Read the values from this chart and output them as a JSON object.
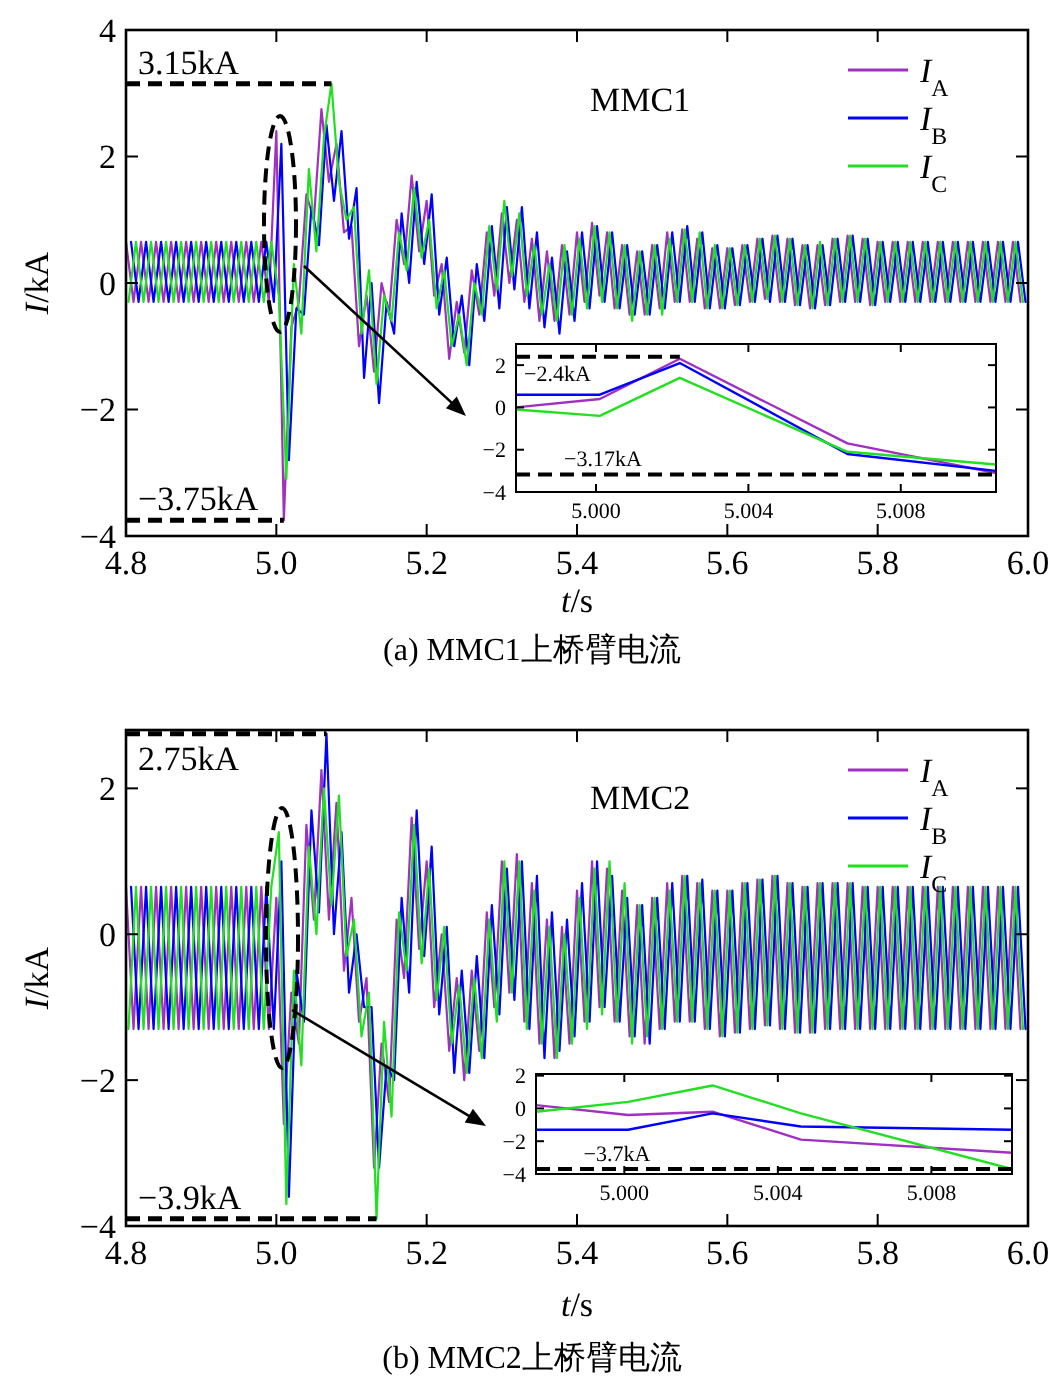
{
  "chart_data": [
    {
      "type": "line",
      "title": "(a) MMC1上桥臂电流",
      "xlabel": "*t*/s",
      "ylabel": "*I*/kA",
      "legend": "top right",
      "xlim": [
        4.8,
        6.0
      ],
      "ylim": [
        -4,
        4
      ],
      "xticks": [
        4.8,
        {
          "value": 5,
          "label": "5.0"
        },
        5.2,
        5.4,
        5.6,
        5.8,
        {
          "value": 6,
          "label": "6.0"
        }
      ],
      "yticks": [
        -4,
        -2,
        0,
        2,
        4
      ],
      "annotations": [
        "MMC1",
        {
          "text": "3.15kA",
          "x": 5.0733,
          "y": 3.15
        },
        {
          "text": "−3.75kA",
          "x": 5.01,
          "y": -3.75
        }
      ],
      "x": [
        4.8,
        4.81,
        4.82,
        4.83,
        4.84,
        4.85,
        4.86,
        4.87,
        4.88,
        4.89,
        4.9,
        4.91,
        4.92,
        4.93,
        4.94,
        4.95,
        4.96,
        4.97,
        4.98,
        4.99,
        5,
        5.01,
        5.02,
        5.03,
        5.04,
        5.05,
        5.06,
        5.07,
        5.08,
        5.09,
        5.1,
        5.11,
        5.12,
        5.13,
        5.14,
        5.15,
        5.16,
        5.17,
        5.18,
        5.19,
        5.2,
        5.21,
        5.22,
        5.23,
        5.24,
        5.25,
        5.26,
        5.27,
        5.28,
        5.29,
        5.3,
        5.31,
        5.32,
        5.33,
        5.34,
        5.35,
        5.36,
        5.37,
        5.38,
        5.39,
        5.4,
        5.41,
        5.42,
        5.43,
        5.44,
        5.45,
        5.46,
        5.47,
        5.48,
        5.49,
        5.5,
        5.51,
        5.52,
        5.53,
        5.54,
        5.55,
        5.56,
        5.57,
        5.58,
        5.59,
        5.6,
        5.61,
        5.62,
        5.63,
        5.64,
        5.65,
        5.66,
        5.67,
        5.68,
        5.69,
        5.7,
        5.71,
        5.72,
        5.73,
        5.74,
        5.75,
        5.76,
        5.77,
        5.78,
        5.79,
        5.8,
        5.81,
        5.82,
        5.83,
        5.84,
        5.85,
        5.86,
        5.87,
        5.88,
        5.89,
        5.9,
        5.91,
        5.92,
        5.93,
        5.94,
        5.95,
        5.96,
        5.97,
        5.98,
        5.99
      ],
      "series": [
        {
          "name": "*I*$_{A}$",
          "color": "#a030c0",
          "values": [
            0.65,
            -0.3,
            0.65,
            -0.3,
            0.65,
            -0.3,
            0.65,
            -0.3,
            0.65,
            -0.3,
            0.65,
            -0.3,
            0.65,
            -0.3,
            0.65,
            -0.3,
            0.65,
            -0.3,
            0.65,
            -0.3,
            2.4,
            -3.75,
            -0.7,
            -0.3,
            1.4,
            1.0,
            2.75,
            1.6,
            2.2,
            0.8,
            0.9,
            -1.0,
            -0.2,
            -1.4,
            0.0,
            -0.5,
            1.0,
            0.3,
            1.7,
            0.5,
            1.3,
            -0.2,
            0.3,
            -1.2,
            -0.3,
            -1.1,
            0.2,
            -0.5,
            0.8,
            -0.2,
            1.1,
            0.0,
            1.0,
            -0.3,
            0.7,
            -0.6,
            0.5,
            -0.6,
            0.6,
            -0.5,
            0.8,
            -0.3,
            0.95,
            -0.2,
            0.8,
            -0.4,
            0.6,
            -0.5,
            0.5,
            -0.5,
            0.6,
            -0.4,
            0.8,
            -0.3,
            0.85,
            -0.3,
            0.7,
            -0.4,
            0.55,
            -0.4,
            0.55,
            -0.35,
            0.6,
            -0.3,
            0.7,
            -0.25,
            0.75,
            -0.3,
            0.7,
            -0.35,
            0.6,
            -0.4,
            0.6,
            -0.35,
            0.7,
            -0.3,
            0.75,
            -0.3,
            0.7,
            -0.35,
            0.65,
            -0.3,
            0.65,
            -0.3,
            0.65,
            -0.3,
            0.65,
            -0.3,
            0.65,
            -0.3,
            0.65,
            -0.3,
            0.65,
            -0.3,
            0.65,
            -0.3,
            0.65,
            -0.3,
            0.65,
            -0.3
          ]
        },
        {
          "name": "*I*$_{B}$",
          "color": "#0000ff",
          "x": [
            4.8067,
            4.8167,
            4.8267,
            4.8367,
            4.8467,
            4.8567,
            4.8667,
            4.8767,
            4.8867,
            4.8967,
            4.9067,
            4.9167,
            4.9267,
            4.9367,
            4.9467,
            4.9567,
            4.9667,
            4.9767,
            4.9867,
            4.9967,
            5.0067,
            5.0167,
            5.0267,
            5.0367,
            5.0467,
            5.0567,
            5.0667,
            5.0767,
            5.0867,
            5.0967,
            5.1067,
            5.1167,
            5.1267,
            5.1367,
            5.1467,
            5.1567,
            5.1667,
            5.1767,
            5.1867,
            5.1967,
            5.2067,
            5.2167,
            5.2267,
            5.2367,
            5.2467,
            5.2567,
            5.2667,
            5.2767,
            5.2867,
            5.2967,
            5.3067,
            5.3167,
            5.3267,
            5.3367,
            5.3467,
            5.3567,
            5.3667,
            5.3767,
            5.3867,
            5.3967,
            5.4067,
            5.4167,
            5.4267,
            5.4367,
            5.4467,
            5.4567,
            5.4667,
            5.4767,
            5.4867,
            5.4967,
            5.5067,
            5.5167,
            5.5267,
            5.5367,
            5.5467,
            5.5567,
            5.5667,
            5.5767,
            5.5867,
            5.5967,
            5.6067,
            5.6167,
            5.6267,
            5.6367,
            5.6467,
            5.6567,
            5.6667,
            5.6767,
            5.6867,
            5.6967,
            5.7067,
            5.7167,
            5.7267,
            5.7367,
            5.7467,
            5.7567,
            5.7667,
            5.7767,
            5.7867,
            5.7967,
            5.8067,
            5.8167,
            5.8267,
            5.8367,
            5.8467,
            5.8567,
            5.8667,
            5.8767,
            5.8867,
            5.8967,
            5.9067,
            5.9167,
            5.9267,
            5.9367,
            5.9467,
            5.9567,
            5.9667,
            5.9767,
            5.9867,
            5.9967
          ],
          "values": [
            0.65,
            -0.3,
            0.65,
            -0.3,
            0.65,
            -0.3,
            0.65,
            -0.3,
            0.65,
            -0.3,
            0.65,
            -0.3,
            0.65,
            -0.3,
            0.65,
            -0.3,
            0.65,
            -0.3,
            0.65,
            -0.3,
            2.2,
            -2.8,
            -0.4,
            -0.5,
            1.2,
            0.6,
            2.5,
            1.3,
            2.4,
            0.7,
            1.5,
            -1.5,
            0.0,
            -1.9,
            -0.3,
            -0.8,
            1.1,
            0.0,
            1.6,
            0.3,
            1.4,
            -0.5,
            0.4,
            -1.0,
            -0.2,
            -1.3,
            0.3,
            -0.6,
            0.9,
            -0.4,
            1.2,
            -0.1,
            1.2,
            -0.4,
            0.8,
            -0.7,
            0.4,
            -0.8,
            0.5,
            -0.6,
            0.8,
            -0.4,
            0.9,
            -0.3,
            0.8,
            -0.4,
            0.6,
            -0.5,
            0.5,
            -0.5,
            0.6,
            -0.4,
            0.8,
            -0.3,
            0.9,
            -0.3,
            0.8,
            -0.4,
            0.6,
            -0.4,
            0.55,
            -0.35,
            0.6,
            -0.3,
            0.7,
            -0.3,
            0.75,
            -0.3,
            0.7,
            -0.35,
            0.6,
            -0.4,
            0.6,
            -0.35,
            0.7,
            -0.3,
            0.75,
            -0.3,
            0.7,
            -0.35,
            0.65,
            -0.3,
            0.65,
            -0.3,
            0.65,
            -0.3,
            0.65,
            -0.3,
            0.65,
            -0.3,
            0.65,
            -0.3,
            0.65,
            -0.3,
            0.65,
            -0.3,
            0.65,
            -0.3,
            0.65,
            -0.3
          ]
        },
        {
          "name": "*I*$_{C}$",
          "color": "#20e020",
          "x": [
            4.8033,
            4.8133,
            4.8233,
            4.8333,
            4.8433,
            4.8533,
            4.8633,
            4.8733,
            4.8833,
            4.8933,
            4.9033,
            4.9133,
            4.9233,
            4.9333,
            4.9433,
            4.9533,
            4.9633,
            4.9733,
            4.9833,
            4.9933,
            5.0033,
            5.0133,
            5.0233,
            5.0333,
            5.0433,
            5.0533,
            5.0633,
            5.0733,
            5.0833,
            5.0933,
            5.1033,
            5.1133,
            5.1233,
            5.1333,
            5.1433,
            5.1533,
            5.1633,
            5.1733,
            5.1833,
            5.1933,
            5.2033,
            5.2133,
            5.2233,
            5.2333,
            5.2433,
            5.2533,
            5.2633,
            5.2733,
            5.2833,
            5.2933,
            5.3033,
            5.3133,
            5.3233,
            5.3333,
            5.3433,
            5.3533,
            5.3633,
            5.3733,
            5.3833,
            5.3933,
            5.4033,
            5.4133,
            5.4233,
            5.4333,
            5.4433,
            5.4533,
            5.4633,
            5.4733,
            5.4833,
            5.4933,
            5.5033,
            5.5133,
            5.5233,
            5.5333,
            5.5433,
            5.5533,
            5.5633,
            5.5733,
            5.5833,
            5.5933,
            5.6033,
            5.6133,
            5.6233,
            5.6333,
            5.6433,
            5.6533,
            5.6633,
            5.6733,
            5.6833,
            5.6933,
            5.7033,
            5.7133,
            5.7233,
            5.7333,
            5.7433,
            5.7533,
            5.7633,
            5.7733,
            5.7833,
            5.7933,
            5.8033,
            5.8133,
            5.8233,
            5.8333,
            5.8433,
            5.8533,
            5.8633,
            5.8733,
            5.8833,
            5.8933,
            5.9033,
            5.9133,
            5.9233,
            5.9333,
            5.9433,
            5.9533,
            5.9633,
            5.9733,
            5.9833,
            5.9933
          ],
          "values": [
            -0.3,
            0.65,
            -0.3,
            0.65,
            -0.3,
            0.65,
            -0.3,
            0.65,
            -0.3,
            0.65,
            -0.3,
            0.65,
            -0.3,
            0.65,
            -0.3,
            0.65,
            -0.3,
            0.65,
            -0.3,
            0.65,
            -0.2,
            -3.1,
            0.3,
            -0.8,
            1.8,
            0.5,
            2.3,
            3.15,
            1.6,
            1.0,
            1.2,
            -0.8,
            0.2,
            -1.6,
            -0.2,
            -0.6,
            0.8,
            0.2,
            1.5,
            0.4,
            1.0,
            -0.4,
            0.2,
            -1.0,
            -0.5,
            -1.3,
            0.0,
            -0.5,
            0.9,
            -0.1,
            1.3,
            0.1,
            1.1,
            -0.2,
            0.6,
            -0.5,
            0.3,
            -0.6,
            0.6,
            -0.5,
            0.7,
            -0.4,
            0.9,
            -0.3,
            0.8,
            -0.4,
            0.6,
            -0.6,
            0.5,
            -0.5,
            0.6,
            -0.5,
            0.7,
            -0.3,
            0.85,
            -0.3,
            0.8,
            -0.4,
            0.6,
            -0.4,
            0.55,
            -0.35,
            0.6,
            -0.3,
            0.7,
            -0.25,
            0.75,
            -0.3,
            0.7,
            -0.35,
            0.6,
            -0.4,
            0.65,
            -0.35,
            0.7,
            -0.3,
            0.75,
            -0.3,
            0.7,
            -0.35,
            0.65,
            -0.3,
            0.65,
            -0.3,
            0.65,
            -0.3,
            0.65,
            -0.3,
            0.65,
            -0.3,
            0.65,
            -0.3,
            0.65,
            -0.3,
            0.65,
            -0.3,
            0.65,
            -0.3,
            0.65,
            -0.3
          ]
        }
      ]
    },
    {
      "type": "line",
      "xlim": [
        4.9979,
        5.0105
      ],
      "ylim": [
        -4,
        3
      ],
      "xticks": [
        {
          "value": 5,
          "label": "5.000"
        },
        {
          "value": 5.004,
          "label": "5.004"
        },
        {
          "value": 5.008,
          "label": "5.008"
        }
      ],
      "yticks": [
        -4,
        -2,
        0,
        2
      ],
      "annotations": [
        {
          "text": "−2.4kA",
          "x": 5.0022,
          "y": 2.4
        }
      ],
      "ref_lines": [
        {
          "axis": "y",
          "value": -3.17,
          "label": "−3.17kA"
        }
      ],
      "x": [
        4.9979,
        5.0001,
        5.0022,
        5.0066,
        5.0105
      ],
      "series": [
        {
          "color": "#a030c0",
          "values": [
            0,
            0.4,
            2.3,
            -1.7,
            -3.1
          ]
        },
        {
          "color": "#0000ff",
          "values": [
            0.6,
            0.6,
            2.1,
            -2.2,
            -3.0
          ]
        },
        {
          "color": "#20e020",
          "values": [
            -0.1,
            -0.4,
            1.4,
            -2.1,
            -2.7
          ]
        }
      ]
    },
    {
      "type": "line",
      "title": "(b) MMC2上桥臂电流",
      "xlabel": "*t*/s",
      "ylabel": "*I*/kA",
      "legend": "top right",
      "xlim": [
        4.8,
        6.0
      ],
      "ylim": [
        -4,
        2.8
      ],
      "xticks": [
        4.8,
        {
          "value": 5,
          "label": "5.0"
        },
        5.2,
        5.4,
        5.6,
        5.8,
        {
          "value": 6,
          "label": "6.0"
        }
      ],
      "yticks": [
        -4,
        -2,
        0,
        2
      ],
      "annotations": [
        "MMC2",
        {
          "text": "2.75kA",
          "x": 5.0667,
          "y": 2.75
        },
        {
          "text": "−3.9kA",
          "x": 5.1333,
          "y": -3.9
        }
      ],
      "x": [
        4.8,
        4.81,
        4.82,
        4.83,
        4.84,
        4.85,
        4.86,
        4.87,
        4.88,
        4.89,
        4.9,
        4.91,
        4.92,
        4.93,
        4.94,
        4.95,
        4.96,
        4.97,
        4.98,
        4.99,
        5,
        5.01,
        5.02,
        5.03,
        5.04,
        5.05,
        5.06,
        5.07,
        5.08,
        5.09,
        5.1,
        5.11,
        5.12,
        5.13,
        5.14,
        5.15,
        5.16,
        5.17,
        5.18,
        5.19,
        5.2,
        5.21,
        5.22,
        5.23,
        5.24,
        5.25,
        5.26,
        5.27,
        5.28,
        5.29,
        5.3,
        5.31,
        5.32,
        5.33,
        5.34,
        5.35,
        5.36,
        5.37,
        5.38,
        5.39,
        5.4,
        5.41,
        5.42,
        5.43,
        5.44,
        5.45,
        5.46,
        5.47,
        5.48,
        5.49,
        5.5,
        5.51,
        5.52,
        5.53,
        5.54,
        5.55,
        5.56,
        5.57,
        5.58,
        5.59,
        5.6,
        5.61,
        5.62,
        5.63,
        5.64,
        5.65,
        5.66,
        5.67,
        5.68,
        5.69,
        5.7,
        5.71,
        5.72,
        5.73,
        5.74,
        5.75,
        5.76,
        5.77,
        5.78,
        5.79,
        5.8,
        5.81,
        5.82,
        5.83,
        5.84,
        5.85,
        5.86,
        5.87,
        5.88,
        5.89,
        5.9,
        5.91,
        5.92,
        5.93,
        5.94,
        5.95,
        5.96,
        5.97,
        5.98,
        5.99
      ],
      "series": [
        {
          "name": "*I*$_{A}$",
          "color": "#a030c0",
          "values": [
            0.65,
            -1.3,
            0.65,
            -1.3,
            0.65,
            -1.3,
            0.65,
            -1.3,
            0.65,
            -1.3,
            0.65,
            -1.3,
            0.65,
            -1.3,
            0.65,
            -1.3,
            0.65,
            -1.3,
            0.65,
            -1.3,
            0.5,
            -2.6,
            -0.8,
            -1.5,
            1.5,
            0.2,
            2.25,
            0.2,
            1.8,
            -0.5,
            0.5,
            -1.2,
            -0.6,
            -3.2,
            -1.5,
            -2.3,
            0.2,
            -0.6,
            1.6,
            -0.2,
            1.0,
            -1.0,
            0.0,
            -1.6,
            -0.6,
            -2.0,
            -0.5,
            -1.6,
            0.3,
            -1.0,
            1.0,
            -0.8,
            1.1,
            -1.2,
            0.7,
            -1.5,
            0.2,
            -1.7,
            0.1,
            -1.5,
            0.6,
            -1.2,
            1.0,
            -1.0,
            0.9,
            -1.2,
            0.6,
            -1.4,
            0.4,
            -1.5,
            0.5,
            -1.3,
            0.7,
            -1.2,
            0.8,
            -1.2,
            0.7,
            -1.3,
            0.6,
            -1.4,
            0.6,
            -1.35,
            0.7,
            -1.3,
            0.75,
            -1.25,
            0.8,
            -1.3,
            0.7,
            -1.35,
            0.65,
            -1.35,
            0.7,
            -1.3,
            0.7,
            -1.3,
            0.7,
            -1.3,
            0.65,
            -1.3,
            0.65,
            -1.3,
            0.65,
            -1.3,
            0.65,
            -1.3,
            0.65,
            -1.3,
            0.65,
            -1.3,
            0.65,
            -1.3,
            0.65,
            -1.3,
            0.65,
            -1.3,
            0.65,
            -1.3,
            0.65,
            -1.3
          ]
        },
        {
          "name": "*I*$_{B}$",
          "color": "#0000ff",
          "x": [
            4.8067,
            4.8167,
            4.8267,
            4.8367,
            4.8467,
            4.8567,
            4.8667,
            4.8767,
            4.8867,
            4.8967,
            4.9067,
            4.9167,
            4.9267,
            4.9367,
            4.9467,
            4.9567,
            4.9667,
            4.9767,
            4.9867,
            4.9967,
            5.0067,
            5.0167,
            5.0267,
            5.0367,
            5.0467,
            5.0567,
            5.0667,
            5.0767,
            5.0867,
            5.0967,
            5.1067,
            5.1167,
            5.1267,
            5.1367,
            5.1467,
            5.1567,
            5.1667,
            5.1767,
            5.1867,
            5.1967,
            5.2067,
            5.2167,
            5.2267,
            5.2367,
            5.2467,
            5.2567,
            5.2667,
            5.2767,
            5.2867,
            5.2967,
            5.3067,
            5.3167,
            5.3267,
            5.3367,
            5.3467,
            5.3567,
            5.3667,
            5.3767,
            5.3867,
            5.3967,
            5.4067,
            5.4167,
            5.4267,
            5.4367,
            5.4467,
            5.4567,
            5.4667,
            5.4767,
            5.4867,
            5.4967,
            5.5067,
            5.5167,
            5.5267,
            5.5367,
            5.5467,
            5.5567,
            5.5667,
            5.5767,
            5.5867,
            5.5967,
            5.6067,
            5.6167,
            5.6267,
            5.6367,
            5.6467,
            5.6567,
            5.6667,
            5.6767,
            5.6867,
            5.6967,
            5.7067,
            5.7167,
            5.7267,
            5.7367,
            5.7467,
            5.7567,
            5.7667,
            5.7767,
            5.7867,
            5.7967,
            5.8067,
            5.8167,
            5.8267,
            5.8367,
            5.8467,
            5.8567,
            5.8667,
            5.8767,
            5.8867,
            5.8967,
            5.9067,
            5.9167,
            5.9267,
            5.9367,
            5.9467,
            5.9567,
            5.9667,
            5.9767,
            5.9867,
            5.9967
          ],
          "values": [
            0.65,
            -1.3,
            0.65,
            -1.3,
            0.65,
            -1.3,
            0.65,
            -1.3,
            0.65,
            -1.3,
            0.65,
            -1.3,
            0.65,
            -1.3,
            0.65,
            -1.3,
            0.65,
            -1.3,
            0.65,
            -1.3,
            1.0,
            -3.6,
            -0.5,
            -1.2,
            1.7,
            0.3,
            2.75,
            0.0,
            1.4,
            -0.8,
            0.0,
            -1.0,
            -1.0,
            -3.2,
            -1.8,
            -2.0,
            0.5,
            -0.8,
            1.7,
            -0.3,
            1.2,
            -1.1,
            0.1,
            -1.9,
            -0.5,
            -1.9,
            -0.3,
            -1.7,
            0.4,
            -1.1,
            0.9,
            -0.9,
            1.0,
            -1.3,
            0.8,
            -1.7,
            0.3,
            -1.6,
            0.2,
            -1.4,
            0.7,
            -1.2,
            1.0,
            -1.0,
            0.8,
            -1.2,
            0.5,
            -1.4,
            0.4,
            -1.5,
            0.5,
            -1.3,
            0.7,
            -1.2,
            0.8,
            -1.2,
            0.75,
            -1.3,
            0.6,
            -1.4,
            0.6,
            -1.35,
            0.7,
            -1.3,
            0.75,
            -1.25,
            0.8,
            -1.3,
            0.7,
            -1.35,
            0.65,
            -1.35,
            0.7,
            -1.3,
            0.7,
            -1.3,
            0.7,
            -1.3,
            0.65,
            -1.3,
            0.65,
            -1.3,
            0.65,
            -1.3,
            0.65,
            -1.3,
            0.65,
            -1.3,
            0.65,
            -1.3,
            0.65,
            -1.3,
            0.65,
            -1.3,
            0.65,
            -1.3,
            0.65,
            -1.3,
            0.65,
            -1.3
          ]
        },
        {
          "name": "*I*$_{C}$",
          "color": "#20e020",
          "x": [
            4.8033,
            4.8133,
            4.8233,
            4.8333,
            4.8433,
            4.8533,
            4.8633,
            4.8733,
            4.8833,
            4.8933,
            4.9033,
            4.9133,
            4.9233,
            4.9333,
            4.9433,
            4.9533,
            4.9633,
            4.9733,
            4.9833,
            4.9933,
            5.0033,
            5.0133,
            5.0233,
            5.0333,
            5.0433,
            5.0533,
            5.0633,
            5.0733,
            5.0833,
            5.0933,
            5.1033,
            5.1133,
            5.1233,
            5.1333,
            5.1433,
            5.1533,
            5.1633,
            5.1733,
            5.1833,
            5.1933,
            5.2033,
            5.2133,
            5.2233,
            5.2333,
            5.2433,
            5.2533,
            5.2633,
            5.2733,
            5.2833,
            5.2933,
            5.3033,
            5.3133,
            5.3233,
            5.3333,
            5.3433,
            5.3533,
            5.3633,
            5.3733,
            5.3833,
            5.3933,
            5.4033,
            5.4133,
            5.4233,
            5.4333,
            5.4433,
            5.4533,
            5.4633,
            5.4733,
            5.4833,
            5.4933,
            5.5033,
            5.5133,
            5.5233,
            5.5333,
            5.5433,
            5.5533,
            5.5633,
            5.5733,
            5.5833,
            5.5933,
            5.6033,
            5.6133,
            5.6233,
            5.6333,
            5.6433,
            5.6533,
            5.6633,
            5.6733,
            5.6833,
            5.6933,
            5.7033,
            5.7133,
            5.7233,
            5.7333,
            5.7433,
            5.7533,
            5.7633,
            5.7733,
            5.7833,
            5.7933,
            5.8033,
            5.8133,
            5.8233,
            5.8333,
            5.8433,
            5.8533,
            5.8633,
            5.8733,
            5.8833,
            5.8933,
            5.9033,
            5.9133,
            5.9233,
            5.9333,
            5.9433,
            5.9533,
            5.9633,
            5.9733,
            5.9833,
            5.9933
          ],
          "values": [
            -1.3,
            0.65,
            -1.3,
            0.65,
            -1.3,
            0.65,
            -1.3,
            0.65,
            -1.3,
            0.65,
            -1.3,
            0.65,
            -1.3,
            0.65,
            -1.3,
            0.65,
            -1.3,
            0.65,
            -1.3,
            0.65,
            1.4,
            -3.7,
            -0.5,
            -1.8,
            1.2,
            0.0,
            2.0,
            0.4,
            1.9,
            -0.3,
            0.2,
            -1.4,
            -0.8,
            -3.9,
            -1.2,
            -2.5,
            0.3,
            -0.5,
            1.5,
            -0.4,
            0.9,
            -0.9,
            0.1,
            -1.5,
            -0.7,
            -1.9,
            -0.6,
            -1.7,
            0.2,
            -1.2,
            1.0,
            -0.8,
            1.0,
            -1.3,
            0.6,
            -1.5,
            0.1,
            -1.7,
            0.0,
            -1.5,
            0.5,
            -1.3,
            0.9,
            -1.1,
            1.0,
            -1.2,
            0.7,
            -1.5,
            0.4,
            -1.4,
            0.5,
            -1.3,
            0.6,
            -1.2,
            0.8,
            -1.2,
            0.7,
            -1.3,
            0.6,
            -1.4,
            0.6,
            -1.35,
            0.7,
            -1.3,
            0.75,
            -1.25,
            0.8,
            -1.3,
            0.7,
            -1.35,
            0.65,
            -1.35,
            0.7,
            -1.3,
            0.7,
            -1.3,
            0.7,
            -1.3,
            0.65,
            -1.3,
            0.65,
            -1.3,
            0.65,
            -1.3,
            0.65,
            -1.3,
            0.65,
            -1.3,
            0.65,
            -1.3,
            0.65,
            -1.3,
            0.65,
            -1.3,
            0.65,
            -1.3,
            0.65,
            -1.3,
            0.65,
            -1.3
          ]
        }
      ]
    },
    {
      "type": "line",
      "xlim": [
        4.9977,
        5.0101
      ],
      "ylim": [
        -4,
        2.1
      ],
      "xticks": [
        {
          "value": 5,
          "label": "5.000"
        },
        {
          "value": 5.004,
          "label": "5.004"
        },
        {
          "value": 5.008,
          "label": "5.008"
        }
      ],
      "yticks": [
        -4,
        -2,
        0,
        2
      ],
      "ref_lines": [
        {
          "axis": "y",
          "value": -3.7,
          "label": "−3.7kA"
        }
      ],
      "x": [
        4.9977,
        5.0001,
        5.0023,
        5.0046,
        5.0101
      ],
      "series": [
        {
          "color": "#a030c0",
          "values": [
            0.2,
            -0.4,
            -0.2,
            -1.9,
            -2.7
          ]
        },
        {
          "color": "#0000ff",
          "values": [
            -1.3,
            -1.3,
            -0.3,
            -1.1,
            -1.3
          ]
        },
        {
          "color": "#20e020",
          "values": [
            -0.2,
            0.4,
            1.4,
            -0.3,
            -3.7
          ]
        }
      ]
    }
  ]
}
